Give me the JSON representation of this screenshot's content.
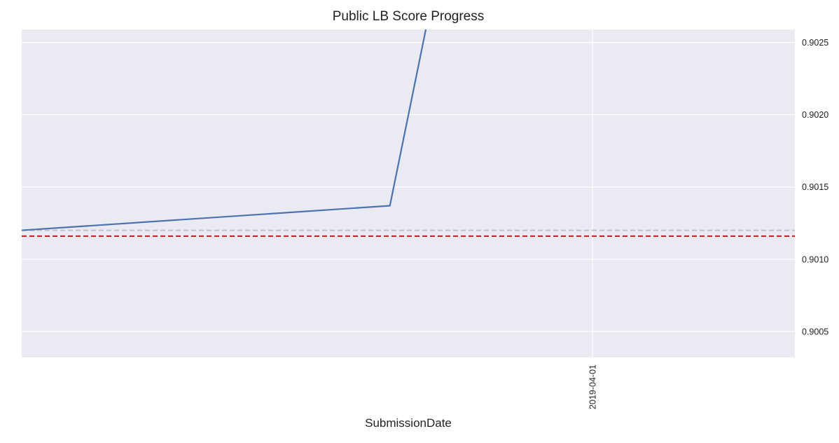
{
  "chart_data": {
    "type": "line",
    "title": "Public LB Score Progress",
    "xlabel": "SubmissionDate",
    "ylabel": "",
    "x_axis_type": "date",
    "xlim": [
      "2019-03-01",
      "2019-04-12"
    ],
    "ylim": [
      0.90032,
      0.90259
    ],
    "y_ticks": [
      0.9005,
      0.901,
      0.9015,
      0.902,
      0.9025
    ],
    "y_tick_labels": [
      "0.9005",
      "0.9010",
      "0.9015",
      "0.9020",
      "0.9025"
    ],
    "y_axis_side": "right",
    "x_ticks": [
      "2019-04-01"
    ],
    "x_tick_labels": [
      "2019-04-01"
    ],
    "x_tick_rotation": 90,
    "grid": true,
    "series": [
      {
        "color": "#4c72b0",
        "style": "solid",
        "points": [
          {
            "x": "2019-03-01",
            "y": 0.9012
          },
          {
            "x": "2019-03-21",
            "y": 0.90137
          },
          {
            "x": "2019-03-23",
            "y": 0.90262
          }
        ]
      }
    ],
    "reference_lines": [
      {
        "y": 0.9012,
        "color": "#c0c0c8",
        "style": "dashed"
      },
      {
        "y": 0.90116,
        "color": "#b22222",
        "style": "dashed"
      }
    ],
    "colors": {
      "plot_background": "#eaeaf2",
      "grid": "#ffffff"
    }
  }
}
